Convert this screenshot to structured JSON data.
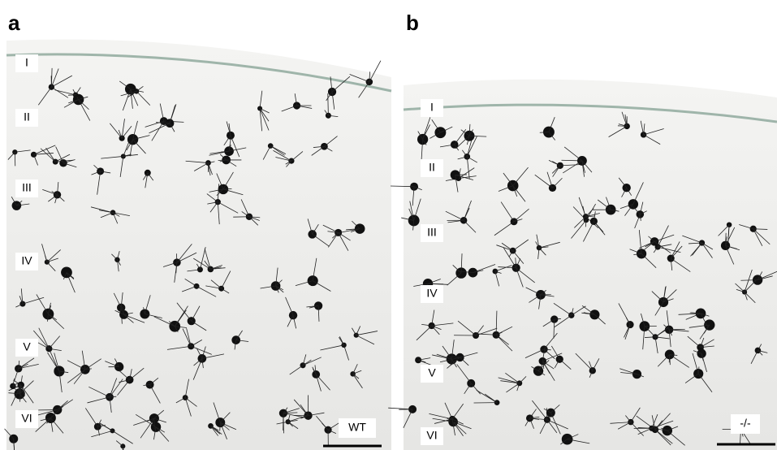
{
  "panels": [
    {
      "label": "a",
      "layers": [
        "I",
        "II",
        "III",
        "IV",
        "V",
        "VI"
      ],
      "genotype": "WT"
    },
    {
      "label": "b",
      "layers": [
        "I",
        "II",
        "III",
        "IV",
        "V",
        "VI"
      ],
      "genotype": "-/-"
    }
  ]
}
